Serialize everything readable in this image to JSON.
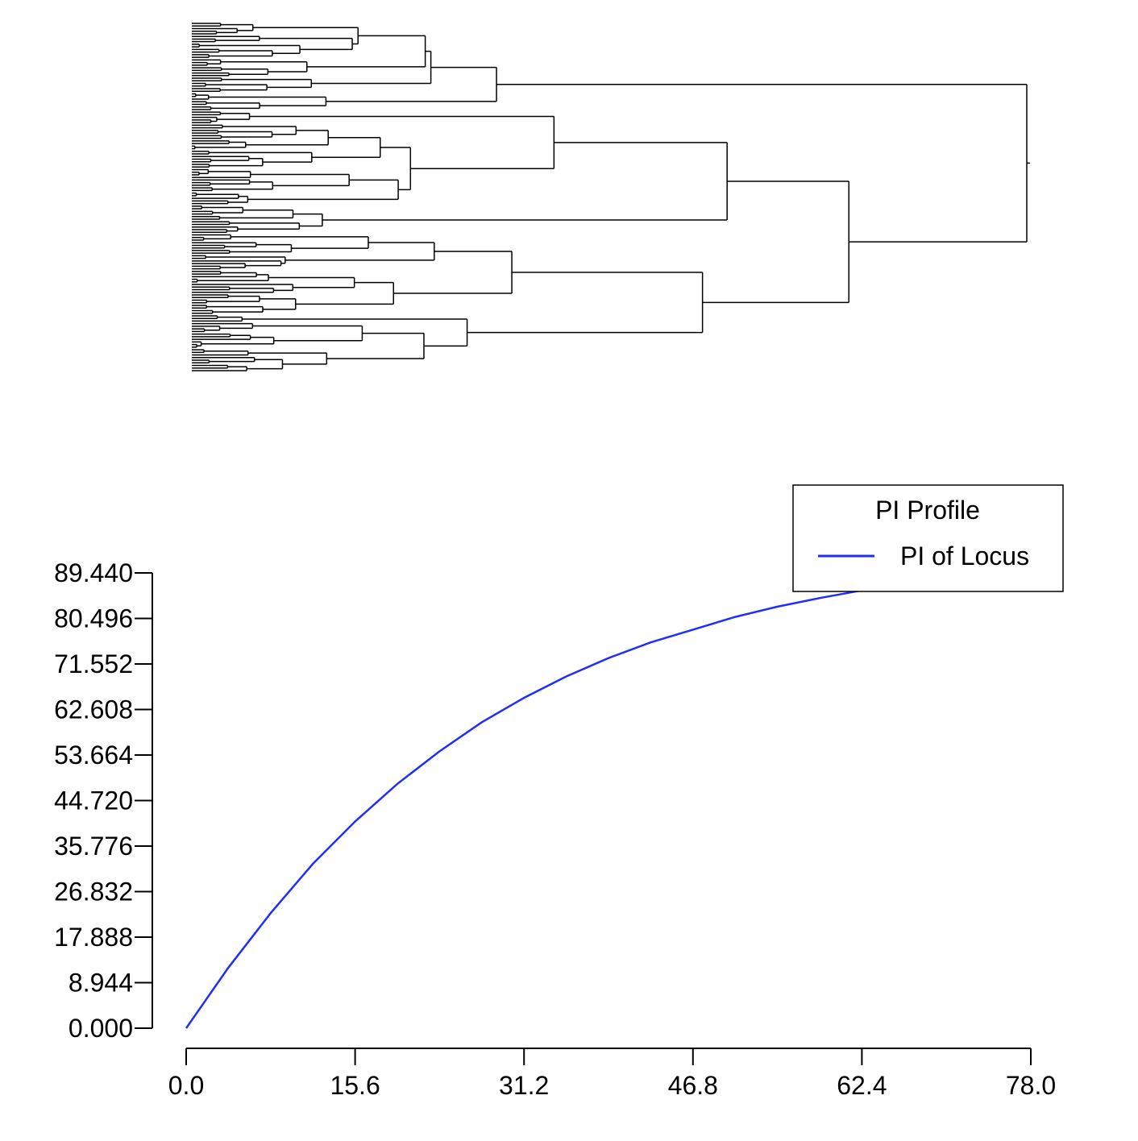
{
  "chart_data": [
    {
      "type": "dendrogram",
      "leaf_count": 134,
      "orientation": "leaves-left, root-right",
      "line_color": "#000000",
      "axes": "none"
    },
    {
      "type": "line",
      "title": "",
      "xlabel": "",
      "ylabel": "",
      "xlim": [
        0,
        78
      ],
      "ylim": [
        0,
        89.44
      ],
      "x_ticks": [
        "0.0",
        "15.6",
        "31.2",
        "46.8",
        "62.4",
        "78.0"
      ],
      "y_ticks": [
        "0.000",
        "8.944",
        "17.888",
        "26.832",
        "35.776",
        "44.720",
        "53.664",
        "62.608",
        "71.552",
        "80.496",
        "89.440"
      ],
      "grid": false,
      "legend": {
        "title": "PI Profile",
        "position": "top-right",
        "entries": [
          {
            "label": "PI of Locus",
            "color": "#1f2eff"
          }
        ]
      },
      "series": [
        {
          "name": "PI of Locus",
          "color": "#1f2eff",
          "x": [
            0,
            3.9,
            7.8,
            11.7,
            15.6,
            19.5,
            23.4,
            27.3,
            31.2,
            35.1,
            39.0,
            42.9,
            46.8,
            50.7,
            54.6,
            58.5,
            62.4,
            66.3,
            70.2,
            74.1,
            78.0
          ],
          "y": [
            0.0,
            11.9,
            22.6,
            32.3,
            40.6,
            48.0,
            54.4,
            60.1,
            64.9,
            69.1,
            72.7,
            75.8,
            78.3,
            80.8,
            82.8,
            84.5,
            86.0,
            87.0,
            87.8,
            88.5,
            89.0
          ]
        }
      ]
    }
  ]
}
